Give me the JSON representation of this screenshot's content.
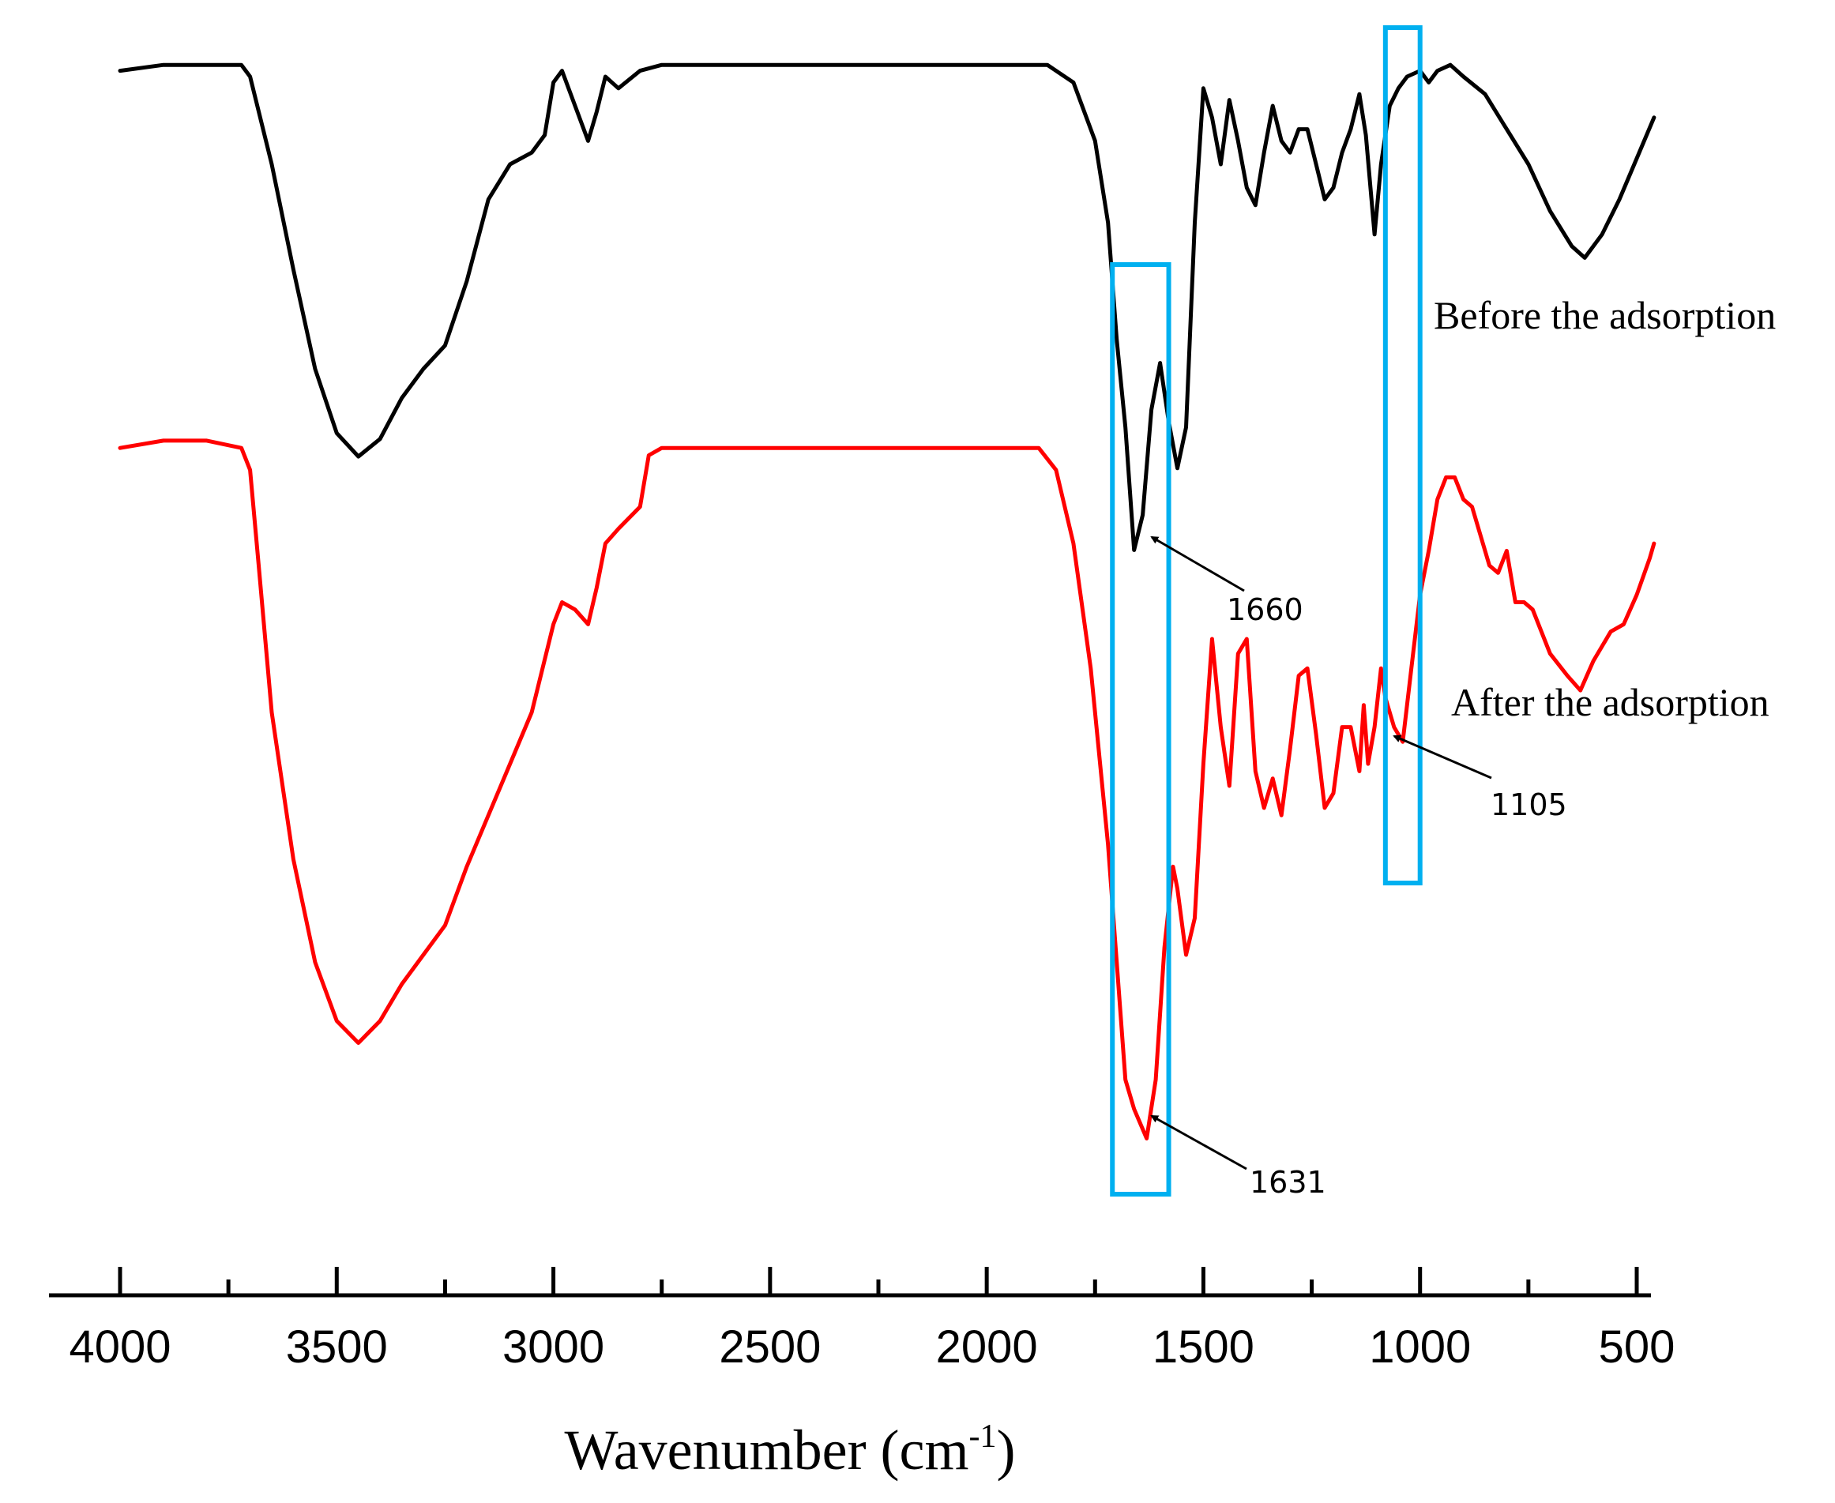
{
  "chart_data": {
    "type": "line",
    "title": "",
    "xlabel": "Wavenumber (cm",
    "xlabel_superscript": "-1",
    "xlabel_close": ")",
    "ylabel": "",
    "xlim": [
      4000,
      500
    ],
    "x_reversed": true,
    "x_ticks": [
      4000,
      3500,
      3000,
      2500,
      2000,
      1500,
      1000,
      500
    ],
    "x_tick_labels": [
      "4000",
      "3500",
      "3000",
      "2500",
      "2000",
      "1500",
      "1000",
      "500"
    ],
    "x_minor_ticks": [
      3750,
      3250,
      2750,
      2250,
      1750,
      1250,
      750
    ],
    "grid": false,
    "y_units": "relative transmittance (offset, unlabeled)",
    "series": [
      {
        "name": "Before the adsorption",
        "color": "#000000",
        "points": [
          [
            4000,
            0.96
          ],
          [
            3900,
            0.97
          ],
          [
            3800,
            0.97
          ],
          [
            3720,
            0.97
          ],
          [
            3700,
            0.95
          ],
          [
            3650,
            0.8
          ],
          [
            3600,
            0.62
          ],
          [
            3550,
            0.45
          ],
          [
            3500,
            0.34
          ],
          [
            3450,
            0.3
          ],
          [
            3400,
            0.33
          ],
          [
            3350,
            0.4
          ],
          [
            3300,
            0.45
          ],
          [
            3250,
            0.49
          ],
          [
            3200,
            0.6
          ],
          [
            3150,
            0.74
          ],
          [
            3100,
            0.8
          ],
          [
            3050,
            0.82
          ],
          [
            3020,
            0.85
          ],
          [
            3000,
            0.94
          ],
          [
            2980,
            0.96
          ],
          [
            2950,
            0.9
          ],
          [
            2920,
            0.84
          ],
          [
            2900,
            0.89
          ],
          [
            2880,
            0.95
          ],
          [
            2850,
            0.93
          ],
          [
            2800,
            0.96
          ],
          [
            2750,
            0.97
          ],
          [
            2500,
            0.97
          ],
          [
            2200,
            0.97
          ],
          [
            2000,
            0.97
          ],
          [
            1860,
            0.97
          ],
          [
            1800,
            0.94
          ],
          [
            1750,
            0.84
          ],
          [
            1720,
            0.7
          ],
          [
            1700,
            0.5
          ],
          [
            1680,
            0.35
          ],
          [
            1660,
            0.14
          ],
          [
            1640,
            0.2
          ],
          [
            1620,
            0.38
          ],
          [
            1600,
            0.46
          ],
          [
            1580,
            0.36
          ],
          [
            1560,
            0.28
          ],
          [
            1540,
            0.35
          ],
          [
            1520,
            0.7
          ],
          [
            1500,
            0.93
          ],
          [
            1480,
            0.88
          ],
          [
            1460,
            0.8
          ],
          [
            1440,
            0.91
          ],
          [
            1420,
            0.84
          ],
          [
            1400,
            0.76
          ],
          [
            1380,
            0.73
          ],
          [
            1360,
            0.82
          ],
          [
            1340,
            0.9
          ],
          [
            1320,
            0.84
          ],
          [
            1300,
            0.82
          ],
          [
            1280,
            0.86
          ],
          [
            1260,
            0.86
          ],
          [
            1240,
            0.8
          ],
          [
            1220,
            0.74
          ],
          [
            1200,
            0.76
          ],
          [
            1180,
            0.82
          ],
          [
            1160,
            0.86
          ],
          [
            1140,
            0.92
          ],
          [
            1125,
            0.85
          ],
          [
            1105,
            0.68
          ],
          [
            1090,
            0.8
          ],
          [
            1070,
            0.9
          ],
          [
            1050,
            0.93
          ],
          [
            1030,
            0.95
          ],
          [
            1000,
            0.96
          ],
          [
            980,
            0.94
          ],
          [
            960,
            0.96
          ],
          [
            930,
            0.97
          ],
          [
            900,
            0.95
          ],
          [
            850,
            0.92
          ],
          [
            800,
            0.86
          ],
          [
            750,
            0.8
          ],
          [
            700,
            0.72
          ],
          [
            650,
            0.66
          ],
          [
            620,
            0.64
          ],
          [
            580,
            0.68
          ],
          [
            540,
            0.74
          ],
          [
            500,
            0.81
          ],
          [
            460,
            0.88
          ]
        ]
      },
      {
        "name": "After the adsorption",
        "color": "#ff0000",
        "points": [
          [
            4000,
            0.96
          ],
          [
            3900,
            0.97
          ],
          [
            3800,
            0.97
          ],
          [
            3720,
            0.96
          ],
          [
            3700,
            0.93
          ],
          [
            3680,
            0.8
          ],
          [
            3650,
            0.6
          ],
          [
            3600,
            0.4
          ],
          [
            3550,
            0.26
          ],
          [
            3500,
            0.18
          ],
          [
            3450,
            0.15
          ],
          [
            3400,
            0.18
          ],
          [
            3350,
            0.23
          ],
          [
            3300,
            0.27
          ],
          [
            3250,
            0.31
          ],
          [
            3200,
            0.39
          ],
          [
            3150,
            0.46
          ],
          [
            3100,
            0.53
          ],
          [
            3050,
            0.6
          ],
          [
            3000,
            0.72
          ],
          [
            2980,
            0.75
          ],
          [
            2950,
            0.74
          ],
          [
            2920,
            0.72
          ],
          [
            2900,
            0.77
          ],
          [
            2880,
            0.83
          ],
          [
            2850,
            0.85
          ],
          [
            2800,
            0.88
          ],
          [
            2780,
            0.95
          ],
          [
            2750,
            0.96
          ],
          [
            2500,
            0.96
          ],
          [
            2200,
            0.96
          ],
          [
            2000,
            0.96
          ],
          [
            1880,
            0.96
          ],
          [
            1840,
            0.93
          ],
          [
            1800,
            0.83
          ],
          [
            1760,
            0.66
          ],
          [
            1720,
            0.42
          ],
          [
            1700,
            0.26
          ],
          [
            1680,
            0.1
          ],
          [
            1660,
            0.06
          ],
          [
            1631,
            0.02
          ],
          [
            1610,
            0.1
          ],
          [
            1590,
            0.28
          ],
          [
            1570,
            0.39
          ],
          [
            1560,
            0.36
          ],
          [
            1540,
            0.27
          ],
          [
            1520,
            0.32
          ],
          [
            1500,
            0.53
          ],
          [
            1480,
            0.7
          ],
          [
            1460,
            0.58
          ],
          [
            1440,
            0.5
          ],
          [
            1420,
            0.68
          ],
          [
            1400,
            0.7
          ],
          [
            1380,
            0.52
          ],
          [
            1360,
            0.47
          ],
          [
            1340,
            0.51
          ],
          [
            1320,
            0.46
          ],
          [
            1300,
            0.55
          ],
          [
            1280,
            0.65
          ],
          [
            1260,
            0.66
          ],
          [
            1240,
            0.57
          ],
          [
            1220,
            0.47
          ],
          [
            1200,
            0.49
          ],
          [
            1180,
            0.58
          ],
          [
            1160,
            0.58
          ],
          [
            1140,
            0.52
          ],
          [
            1130,
            0.61
          ],
          [
            1120,
            0.53
          ],
          [
            1105,
            0.58
          ],
          [
            1090,
            0.66
          ],
          [
            1080,
            0.62
          ],
          [
            1060,
            0.58
          ],
          [
            1040,
            0.56
          ],
          [
            1020,
            0.66
          ],
          [
            1000,
            0.76
          ],
          [
            980,
            0.82
          ],
          [
            960,
            0.89
          ],
          [
            940,
            0.92
          ],
          [
            920,
            0.92
          ],
          [
            900,
            0.89
          ],
          [
            880,
            0.88
          ],
          [
            860,
            0.84
          ],
          [
            840,
            0.8
          ],
          [
            820,
            0.79
          ],
          [
            800,
            0.82
          ],
          [
            780,
            0.75
          ],
          [
            760,
            0.75
          ],
          [
            740,
            0.74
          ],
          [
            720,
            0.71
          ],
          [
            700,
            0.68
          ],
          [
            660,
            0.65
          ],
          [
            630,
            0.63
          ],
          [
            600,
            0.67
          ],
          [
            560,
            0.71
          ],
          [
            530,
            0.72
          ],
          [
            500,
            0.76
          ],
          [
            470,
            0.81
          ],
          [
            460,
            0.83
          ]
        ]
      }
    ],
    "legend_labels": [
      "Before the adsorption",
      "After the adsorption"
    ],
    "legend_placement": "right, next to each curve",
    "highlight_boxes": [
      {
        "name": "box-1660-1631",
        "x_range": [
          1710,
          1580
        ],
        "color": "#00b0f0"
      },
      {
        "name": "box-1105",
        "x_range": [
          1080,
          1000
        ],
        "color": "#00b0f0"
      }
    ],
    "annotations": [
      {
        "label": "1660",
        "x": 1660,
        "series": "Before the adsorption"
      },
      {
        "label": "1631",
        "x": 1631,
        "series": "After the adsorption"
      },
      {
        "label": "1105",
        "x": 1105,
        "series": "After the adsorption"
      }
    ]
  }
}
